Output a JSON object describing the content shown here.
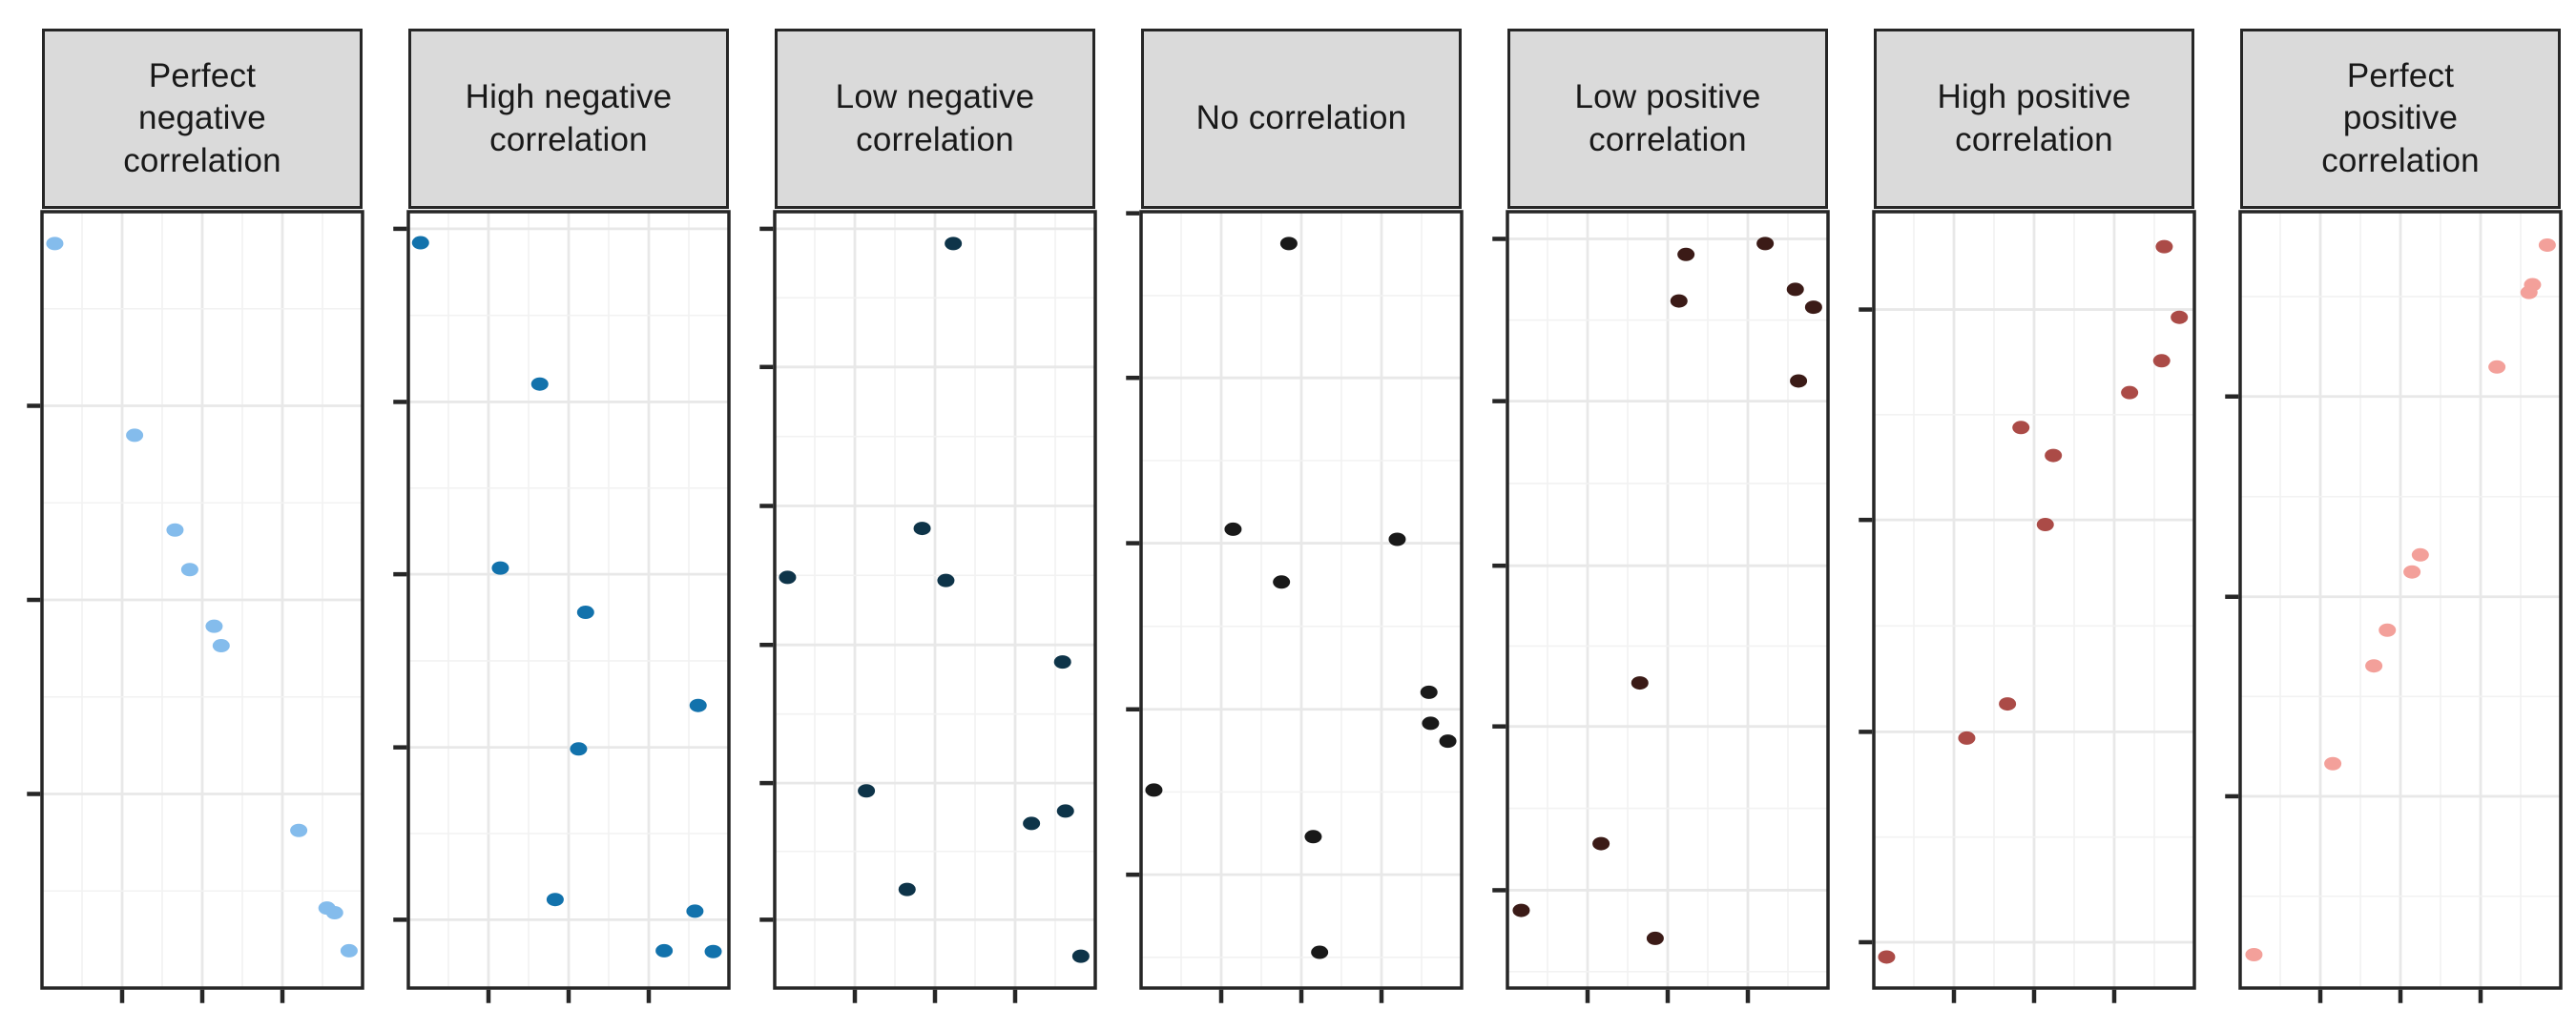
{
  "chart_data": {
    "type": "scatter",
    "title": "",
    "xlabel": "",
    "ylabel": "",
    "axes": {
      "x_range": [
        0,
        1
      ],
      "y_range": [
        0,
        1
      ],
      "tick_labels_visible": false,
      "x_tick_positions": [
        0.25,
        0.5,
        0.75
      ],
      "grid": "on",
      "legend": "none",
      "facet_header_bg": "#DADADA",
      "panel_border_color": "#262626",
      "grid_major_color": "#E8E8E8",
      "grid_minor_color": "#F2F2F2"
    },
    "panels": [
      {
        "label": "Perfect\nnegative\ncorrelation",
        "point_color": "#84BCEC",
        "x_ticks": [
          0.25,
          0.5,
          0.75
        ],
        "y_ticks": [
          0.25,
          0.5,
          0.75
        ],
        "points": [
          {
            "x": 0.04,
            "y": 0.959
          },
          {
            "x": 0.289,
            "y": 0.712
          },
          {
            "x": 0.415,
            "y": 0.59
          },
          {
            "x": 0.461,
            "y": 0.539
          },
          {
            "x": 0.537,
            "y": 0.466
          },
          {
            "x": 0.559,
            "y": 0.441
          },
          {
            "x": 0.801,
            "y": 0.203
          },
          {
            "x": 0.889,
            "y": 0.103
          },
          {
            "x": 0.913,
            "y": 0.097
          },
          {
            "x": 0.958,
            "y": 0.048
          }
        ]
      },
      {
        "label": "High negative\ncorrelation",
        "point_color": "#1272AC",
        "x_ticks": [
          0.25,
          0.5,
          0.75
        ],
        "y_ticks": [
          0.088,
          0.31,
          0.533,
          0.755,
          0.978
        ],
        "points": [
          {
            "x": 0.038,
            "y": 0.96
          },
          {
            "x": 0.41,
            "y": 0.778
          },
          {
            "x": 0.287,
            "y": 0.541
          },
          {
            "x": 0.553,
            "y": 0.484
          },
          {
            "x": 0.904,
            "y": 0.364
          },
          {
            "x": 0.531,
            "y": 0.308
          },
          {
            "x": 0.458,
            "y": 0.114
          },
          {
            "x": 0.894,
            "y": 0.099
          },
          {
            "x": 0.798,
            "y": 0.048
          },
          {
            "x": 0.951,
            "y": 0.047
          }
        ]
      },
      {
        "label": "Low negative\ncorrelation",
        "point_color": "#0E3449",
        "x_ticks": [
          0.25,
          0.5,
          0.75
        ],
        "y_ticks": [
          0.088,
          0.264,
          0.442,
          0.621,
          0.8,
          0.978
        ],
        "points": [
          {
            "x": 0.557,
            "y": 0.959
          },
          {
            "x": 0.46,
            "y": 0.592
          },
          {
            "x": 0.04,
            "y": 0.529
          },
          {
            "x": 0.534,
            "y": 0.525
          },
          {
            "x": 0.898,
            "y": 0.42
          },
          {
            "x": 0.286,
            "y": 0.254
          },
          {
            "x": 0.907,
            "y": 0.228
          },
          {
            "x": 0.801,
            "y": 0.212
          },
          {
            "x": 0.413,
            "y": 0.127
          },
          {
            "x": 0.955,
            "y": 0.041
          }
        ]
      },
      {
        "label": "No correlation",
        "point_color": "#191919",
        "x_ticks": [
          0.25,
          0.5,
          0.75
        ],
        "y_ticks": [
          0.146,
          0.359,
          0.573,
          0.786,
          0.998
        ],
        "points": [
          {
            "x": 0.461,
            "y": 0.959
          },
          {
            "x": 0.287,
            "y": 0.591
          },
          {
            "x": 0.799,
            "y": 0.578
          },
          {
            "x": 0.438,
            "y": 0.523
          },
          {
            "x": 0.898,
            "y": 0.381
          },
          {
            "x": 0.903,
            "y": 0.341
          },
          {
            "x": 0.957,
            "y": 0.318
          },
          {
            "x": 0.04,
            "y": 0.255
          },
          {
            "x": 0.537,
            "y": 0.195
          },
          {
            "x": 0.557,
            "y": 0.046
          }
        ]
      },
      {
        "label": "Low positive\ncorrelation",
        "point_color": "#3B1B17",
        "x_ticks": [
          0.25,
          0.5,
          0.75
        ],
        "y_ticks": [
          0.126,
          0.337,
          0.544,
          0.756,
          0.965
        ],
        "points": [
          {
            "x": 0.804,
            "y": 0.959
          },
          {
            "x": 0.557,
            "y": 0.945
          },
          {
            "x": 0.898,
            "y": 0.9
          },
          {
            "x": 0.535,
            "y": 0.885
          },
          {
            "x": 0.955,
            "y": 0.877
          },
          {
            "x": 0.908,
            "y": 0.782
          },
          {
            "x": 0.413,
            "y": 0.393
          },
          {
            "x": 0.292,
            "y": 0.186
          },
          {
            "x": 0.043,
            "y": 0.1
          },
          {
            "x": 0.461,
            "y": 0.064
          }
        ]
      },
      {
        "label": "High positive\ncorrelation",
        "point_color": "#AB4B47",
        "x_ticks": [
          0.25,
          0.5,
          0.75
        ],
        "y_ticks": [
          0.059,
          0.33,
          0.603,
          0.874
        ],
        "points": [
          {
            "x": 0.906,
            "y": 0.955
          },
          {
            "x": 0.953,
            "y": 0.864
          },
          {
            "x": 0.898,
            "y": 0.808
          },
          {
            "x": 0.798,
            "y": 0.767
          },
          {
            "x": 0.459,
            "y": 0.722
          },
          {
            "x": 0.56,
            "y": 0.686
          },
          {
            "x": 0.535,
            "y": 0.597
          },
          {
            "x": 0.417,
            "y": 0.366
          },
          {
            "x": 0.29,
            "y": 0.322
          },
          {
            "x": 0.04,
            "y": 0.04
          }
        ]
      },
      {
        "label": "Perfect\npositive\ncorrelation",
        "point_color": "#F3A09A",
        "x_ticks": [
          0.25,
          0.5,
          0.75
        ],
        "y_ticks": [
          0.247,
          0.504,
          0.762
        ],
        "points": [
          {
            "x": 0.958,
            "y": 0.957
          },
          {
            "x": 0.912,
            "y": 0.906
          },
          {
            "x": 0.901,
            "y": 0.896
          },
          {
            "x": 0.801,
            "y": 0.8
          },
          {
            "x": 0.562,
            "y": 0.558
          },
          {
            "x": 0.536,
            "y": 0.536
          },
          {
            "x": 0.459,
            "y": 0.461
          },
          {
            "x": 0.417,
            "y": 0.415
          },
          {
            "x": 0.289,
            "y": 0.289
          },
          {
            "x": 0.043,
            "y": 0.043
          }
        ]
      }
    ]
  },
  "styles": {
    "background": "#FFFFFF",
    "header_bg": "#DADADA",
    "border_color": "#262626",
    "grid_major": "#E8E8E8",
    "grid_minor": "#F2F2F2",
    "tick_color": "#262626"
  }
}
